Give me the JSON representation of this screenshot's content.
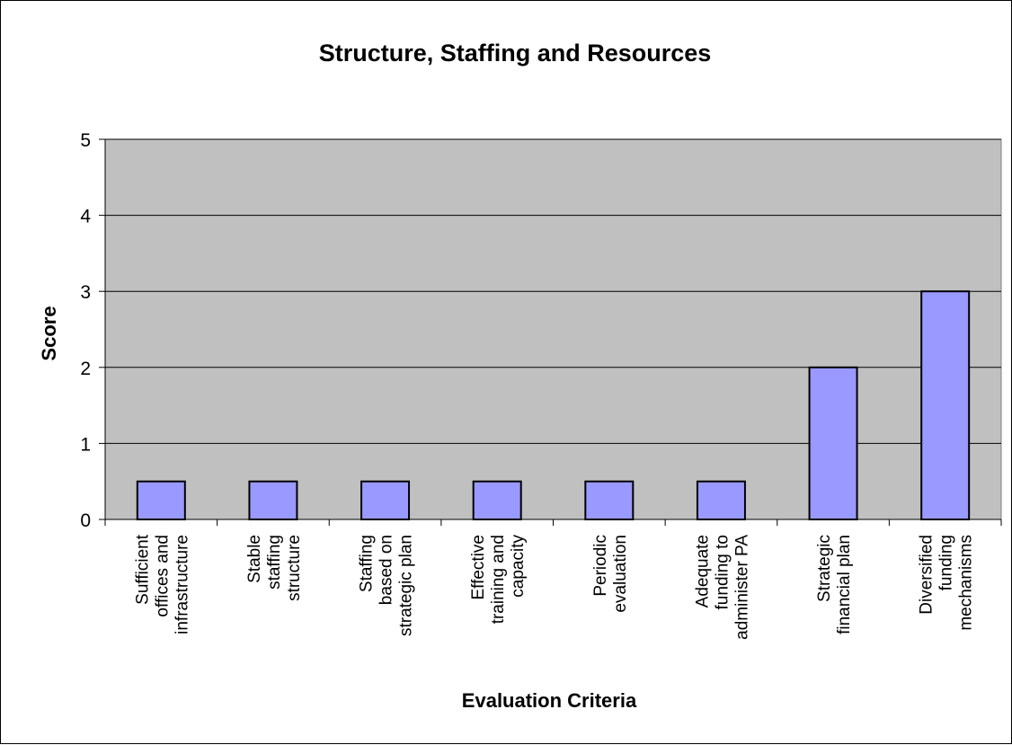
{
  "chart_data": {
    "type": "bar",
    "title": "Structure, Staffing and Resources",
    "xlabel": "Evaluation Criteria",
    "ylabel": "Score",
    "ylim": [
      0,
      5
    ],
    "yticks": [
      "0",
      "1",
      "2",
      "3",
      "4",
      "5"
    ],
    "grid": true,
    "legend": "none",
    "colors": {
      "bar": "#9999ff",
      "plot_bg": "#c0c0c0",
      "border": "#000000"
    },
    "categories": [
      [
        "Sufficient",
        "offices and",
        "infrastructure"
      ],
      [
        "Stable",
        "staffing",
        "structure"
      ],
      [
        "Staffing",
        "based on",
        "strategic plan"
      ],
      [
        "Effective",
        "training and",
        "capacity"
      ],
      [
        "Periodic",
        "evaluation"
      ],
      [
        "Adequate",
        "funding to",
        "administer PA"
      ],
      [
        "Strategic",
        "financial plan"
      ],
      [
        "Diversified",
        "funding",
        "mechanisms"
      ]
    ],
    "values": [
      0.5,
      0.5,
      0.5,
      0.5,
      0.5,
      0.5,
      2,
      3
    ]
  }
}
